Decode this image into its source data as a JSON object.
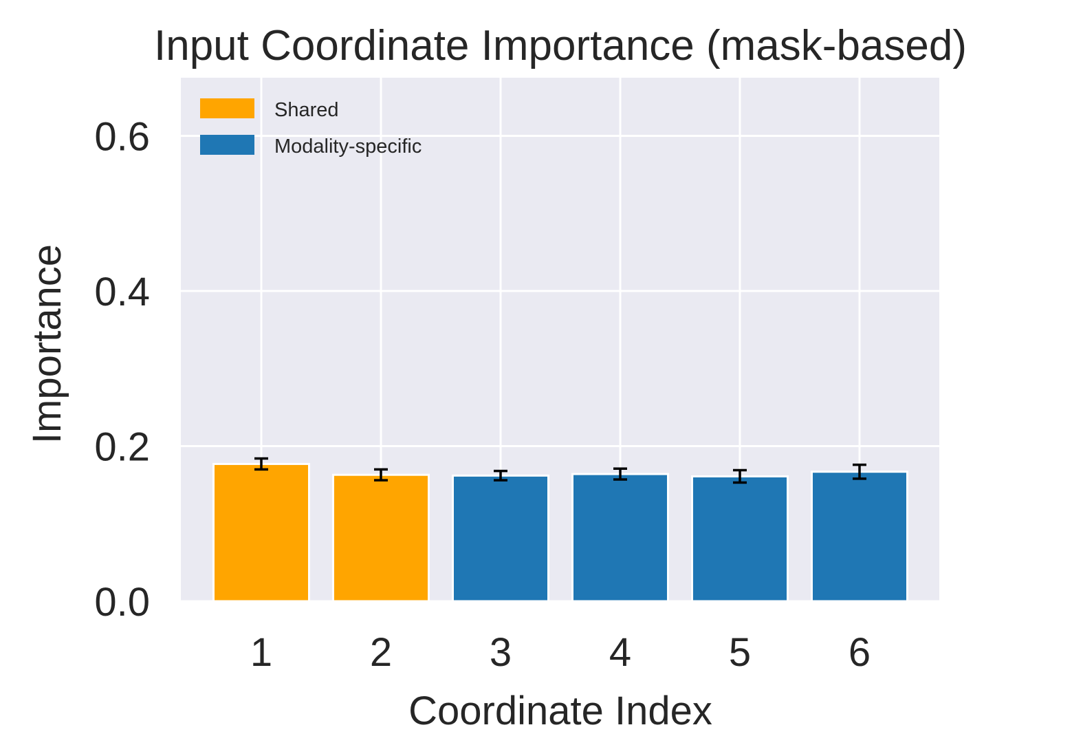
{
  "chart_data": {
    "type": "bar",
    "title": "Input Coordinate Importance (mask-based)",
    "xlabel": "Coordinate Index",
    "ylabel": "Importance",
    "categories": [
      "1",
      "2",
      "3",
      "4",
      "5",
      "6"
    ],
    "values": [
      0.177,
      0.163,
      0.162,
      0.164,
      0.161,
      0.167
    ],
    "errors": [
      0.007,
      0.007,
      0.006,
      0.007,
      0.008,
      0.009
    ],
    "groups": [
      "Shared",
      "Shared",
      "Modality-specific",
      "Modality-specific",
      "Modality-specific",
      "Modality-specific"
    ],
    "ylim": [
      0,
      0.675
    ],
    "yticks": [
      0.0,
      0.2,
      0.4,
      0.6
    ],
    "ytick_labels": [
      "0.0",
      "0.2",
      "0.4",
      "0.6"
    ],
    "grid": true,
    "legend": {
      "placement": "top-left",
      "entries": [
        {
          "label": "Shared",
          "color": "#FFA500"
        },
        {
          "label": "Modality-specific",
          "color": "#1F77B4"
        }
      ]
    },
    "colors": {
      "plot_background": "#EAEAF2",
      "grid": "#FFFFFF",
      "error_bar": "#000000"
    }
  }
}
